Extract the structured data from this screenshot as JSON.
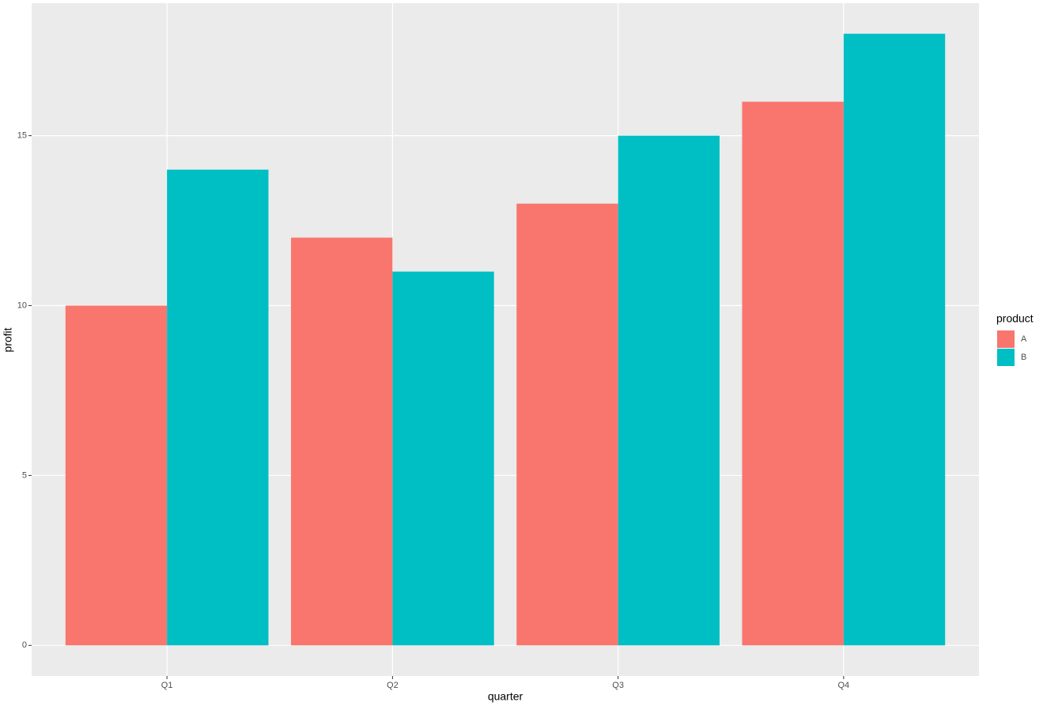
{
  "chart_data": {
    "type": "bar",
    "x_label": "quarter",
    "y_label": "profit",
    "categories": [
      "Q1",
      "Q2",
      "Q3",
      "Q4"
    ],
    "series": [
      {
        "name": "A",
        "color": "#f8766d",
        "values": [
          10,
          12,
          13,
          16
        ]
      },
      {
        "name": "B",
        "color": "#00bfc4",
        "values": [
          14,
          11,
          15,
          18
        ]
      }
    ],
    "legend_title": "product",
    "legend": "right",
    "ylim": [
      -0.9,
      18.9
    ],
    "yticks": [
      0,
      5,
      10,
      15
    ],
    "grid": true
  }
}
